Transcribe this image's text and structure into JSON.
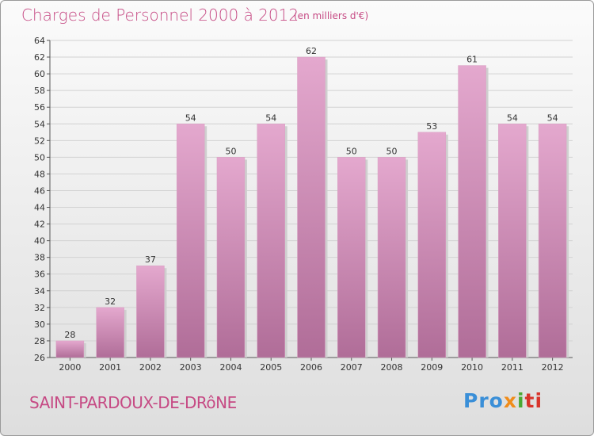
{
  "header": {
    "title": "Charges de Personnel 2000 à 2012",
    "unit": "(en milliers d'€)"
  },
  "footer": {
    "town": "SAINT-PARDOUX-DE-DRôNE",
    "logo": [
      "Pro",
      "x",
      "i",
      "ti"
    ]
  },
  "colors": {
    "title": "#c64a84",
    "bar_light": "#e4a8ce",
    "bar_dark": "#b06d98"
  },
  "chart_data": {
    "type": "bar",
    "categories": [
      "2000",
      "2001",
      "2002",
      "2003",
      "2004",
      "2005",
      "2006",
      "2007",
      "2008",
      "2009",
      "2010",
      "2011",
      "2012"
    ],
    "values": [
      28,
      32,
      37,
      54,
      50,
      54,
      62,
      50,
      50,
      53,
      61,
      54,
      54
    ],
    "ylim": [
      26,
      64
    ],
    "yticks": [
      26,
      28,
      30,
      32,
      34,
      36,
      38,
      40,
      42,
      44,
      46,
      48,
      50,
      52,
      54,
      56,
      58,
      60,
      62,
      64
    ],
    "grid": true
  }
}
